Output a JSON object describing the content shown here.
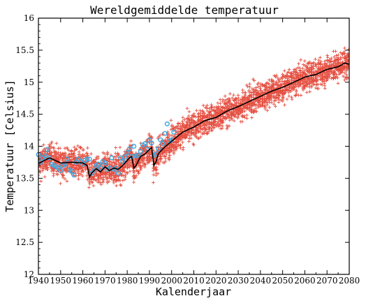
{
  "chart_data": {
    "type": "scatter",
    "title": "Wereldgemiddelde temperatuur",
    "xlabel": "Kalenderjaar",
    "ylabel": "Temperatuur [Celsius]",
    "xlim": [
      1940,
      2080
    ],
    "ylim": [
      12,
      16
    ],
    "x_ticks": [
      "1940",
      "1950",
      "1960",
      "1970",
      "1980",
      "1990",
      "2000",
      "2010",
      "2020",
      "2030",
      "2040",
      "2050",
      "2060",
      "2070",
      "2080"
    ],
    "y_ticks": [
      "12",
      "12.5",
      "13",
      "13.5",
      "14",
      "14.5",
      "15",
      "15.5",
      "16"
    ],
    "grid": false,
    "legend": "none",
    "colors": {
      "ensemble": "#e03020",
      "observed": "#3fa9e0",
      "mean": "#000000"
    },
    "series": [
      {
        "marker": "plus",
        "style": "ensemble cloud (spread around mean)",
        "spread": 0.16
      },
      {
        "marker": "circle",
        "x": [
          1940,
          1941,
          1942,
          1943,
          1944,
          1945,
          1946,
          1947,
          1948,
          1949,
          1950,
          1951,
          1952,
          1953,
          1954,
          1955,
          1956,
          1957,
          1958,
          1959,
          1960,
          1961,
          1962,
          1963,
          1964,
          1965,
          1966,
          1967,
          1968,
          1969,
          1970,
          1971,
          1972,
          1973,
          1974,
          1975,
          1976,
          1977,
          1978,
          1979,
          1980,
          1981,
          1982,
          1983,
          1984,
          1985,
          1986,
          1987,
          1988,
          1989,
          1990,
          1991,
          1992,
          1993,
          1994,
          1995,
          1996,
          1997,
          1998,
          1999,
          2000,
          2001
        ],
        "y": [
          13.87,
          13.75,
          13.82,
          13.85,
          13.95,
          13.82,
          13.72,
          13.7,
          13.68,
          13.66,
          13.62,
          13.7,
          13.72,
          13.8,
          13.63,
          13.61,
          13.55,
          13.75,
          13.8,
          13.76,
          13.72,
          13.78,
          13.8,
          13.8,
          13.58,
          13.62,
          13.7,
          13.72,
          13.66,
          13.76,
          13.74,
          13.64,
          13.66,
          13.82,
          13.64,
          13.66,
          13.58,
          13.82,
          13.76,
          13.83,
          13.9,
          13.96,
          13.84,
          14.0,
          13.85,
          13.86,
          13.92,
          14.02,
          14.04,
          13.95,
          14.1,
          14.05,
          13.86,
          13.88,
          13.96,
          14.1,
          14.04,
          14.2,
          14.35,
          14.08,
          14.1,
          14.22
        ]
      },
      {
        "marker": "line",
        "x": [
          1940,
          1945,
          1950,
          1955,
          1960,
          1962,
          1963,
          1964,
          1966,
          1968,
          1970,
          1972,
          1974,
          1976,
          1978,
          1980,
          1981,
          1982,
          1983,
          1984,
          1986,
          1988,
          1990,
          1991,
          1992,
          1993,
          1994,
          1996,
          1998,
          2000,
          2005,
          2010,
          2015,
          2020,
          2025,
          2030,
          2035,
          2040,
          2045,
          2050,
          2055,
          2060,
          2065,
          2070,
          2075,
          2078,
          2080
        ],
        "y": [
          13.73,
          13.82,
          13.74,
          13.75,
          13.74,
          13.7,
          13.52,
          13.58,
          13.65,
          13.6,
          13.68,
          13.62,
          13.66,
          13.64,
          13.7,
          13.78,
          13.82,
          13.84,
          13.66,
          13.7,
          13.84,
          13.88,
          13.95,
          13.98,
          13.7,
          13.76,
          13.88,
          13.96,
          14.02,
          14.08,
          14.22,
          14.3,
          14.4,
          14.45,
          14.55,
          14.62,
          14.7,
          14.78,
          14.86,
          14.92,
          15.0,
          15.08,
          15.12,
          15.2,
          15.24,
          15.3,
          15.28
        ]
      }
    ]
  }
}
